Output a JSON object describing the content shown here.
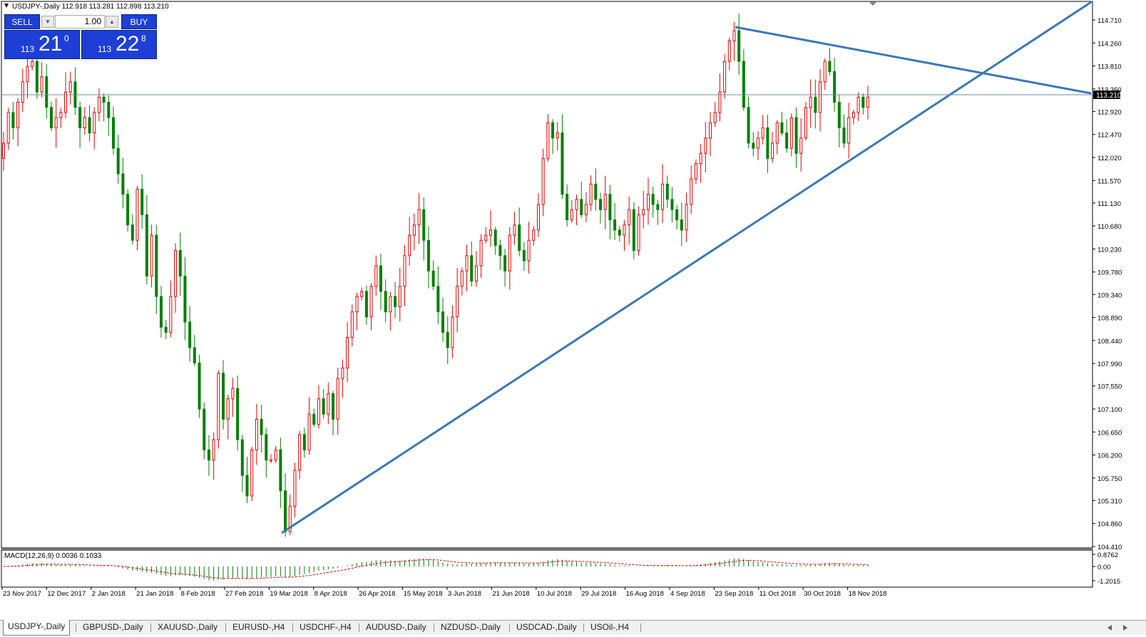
{
  "symbol_header": "USDJPY-,Daily  112.918 113.281 112.898 113.210",
  "trade_panel": {
    "sell_label": "SELL",
    "buy_label": "BUY",
    "lot_value": "1.00",
    "sell_price_small": "113",
    "sell_price_big": "21",
    "sell_price_sup": "0",
    "buy_price_small": "113",
    "buy_price_big": "22",
    "buy_price_sup": "8"
  },
  "price_axis": {
    "ticks": [
      "114.710",
      "114.260",
      "113.810",
      "113.360",
      "112.920",
      "112.470",
      "112.020",
      "111.570",
      "111.130",
      "110.680",
      "110.230",
      "109.780",
      "109.340",
      "108.890",
      "108.440",
      "107.990",
      "107.550",
      "107.100",
      "106.650",
      "106.200",
      "105.750",
      "105.310",
      "104.860",
      "104.410"
    ],
    "current_price": "113.210"
  },
  "macd": {
    "label": "MACD(12,26,9) 0.0036 0.1033",
    "ticks": [
      "0.8762",
      "0.00",
      "-1.2015"
    ]
  },
  "date_axis": [
    "23 Nov 2017",
    "12 Dec 2017",
    "2 Jan 2018",
    "21 Jan 2018",
    "8 Feb 2018",
    "27 Feb 2018",
    "19 Mar 2018",
    "8 Apr 2018",
    "26 Apr 2018",
    "15 May 2018",
    "3 Jun 2018",
    "21 Jun 2018",
    "10 Jul 2018",
    "29 Jul 2018",
    "16 Aug 2018",
    "4 Sep 2018",
    "23 Sep 2018",
    "11 Oct 2018",
    "30 Oct 2018",
    "18 Nov 2018"
  ],
  "colors": {
    "bull": "#e60000",
    "bear": "#008000",
    "trendline": "#3b78b5",
    "hline": "#6e8aa8",
    "panel_blue": "#1d3fd6"
  },
  "price_path_close": [
    112.3,
    112.9,
    112.6,
    113.1,
    113.5,
    113.8,
    113.9,
    113.3,
    113.6,
    113.0,
    112.6,
    112.8,
    112.9,
    113.3,
    113.5,
    113.0,
    112.6,
    112.8,
    112.5,
    112.9,
    113.2,
    113.1,
    112.8,
    112.2,
    111.7,
    111.3,
    110.7,
    110.4,
    111.4,
    110.9,
    109.7,
    110.5,
    109.3,
    108.7,
    108.6,
    109.3,
    110.2,
    109.7,
    108.8,
    108.3,
    108.0,
    107.1,
    106.3,
    106.1,
    106.5,
    107.8,
    106.9,
    107.3,
    107.5,
    106.5,
    105.8,
    105.4,
    106.3,
    106.9,
    106.6,
    106.1,
    106.1,
    106.3,
    105.5,
    104.7,
    105.2,
    105.9,
    106.6,
    106.3,
    107.0,
    106.8,
    107.3,
    107.0,
    107.4,
    106.9,
    107.7,
    107.9,
    108.5,
    109.0,
    109.3,
    109.4,
    108.9,
    109.5,
    109.9,
    109.4,
    109.0,
    109.3,
    109.1,
    109.5,
    110.1,
    110.5,
    110.7,
    111.0,
    110.4,
    109.8,
    109.5,
    109.0,
    108.6,
    108.3,
    108.9,
    109.5,
    109.8,
    110.1,
    109.6,
    109.9,
    110.4,
    110.5,
    110.6,
    110.3,
    110.1,
    109.8,
    110.5,
    110.7,
    110.2,
    110.0,
    110.4,
    110.6,
    111.1,
    112.0,
    112.7,
    112.4,
    112.5,
    111.3,
    110.8,
    111.0,
    111.2,
    110.9,
    111.1,
    111.5,
    111.2,
    111.0,
    111.3,
    110.8,
    110.6,
    110.5,
    110.7,
    111.0,
    110.2,
    110.9,
    111.0,
    111.3,
    111.1,
    111.0,
    111.5,
    111.2,
    111.0,
    110.8,
    110.6,
    111.1,
    111.6,
    111.9,
    112.1,
    112.4,
    112.7,
    112.9,
    113.3,
    113.9,
    114.3,
    114.5,
    113.9,
    113.0,
    112.3,
    112.2,
    112.4,
    112.6,
    112.0,
    112.3,
    112.7,
    112.5,
    112.2,
    112.8,
    112.1,
    112.4,
    113.0,
    113.2,
    112.9,
    113.5,
    113.9,
    113.7,
    113.1,
    112.6,
    112.3,
    112.8,
    112.9,
    113.2,
    113.0,
    113.2
  ]
}
